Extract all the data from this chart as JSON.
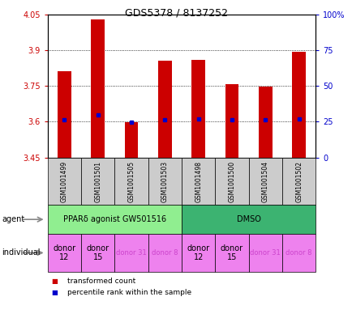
{
  "title": "GDS5378 / 8137252",
  "samples": [
    "GSM1001499",
    "GSM1001501",
    "GSM1001505",
    "GSM1001503",
    "GSM1001498",
    "GSM1001500",
    "GSM1001504",
    "GSM1001502"
  ],
  "red_values": [
    3.81,
    4.03,
    3.597,
    3.855,
    3.858,
    3.758,
    3.748,
    3.893
  ],
  "blue_values": [
    3.607,
    3.627,
    3.597,
    3.607,
    3.61,
    3.607,
    3.607,
    3.61
  ],
  "ylim_left": [
    3.45,
    4.05
  ],
  "ylim_right": [
    0,
    100
  ],
  "yticks_left": [
    3.45,
    3.6,
    3.75,
    3.9,
    4.05
  ],
  "ytick_labels_left": [
    "3.45",
    "3.6",
    "3.75",
    "3.9",
    "4.05"
  ],
  "yticks_right": [
    0,
    25,
    50,
    75,
    100
  ],
  "ytick_labels_right": [
    "0",
    "25",
    "50",
    "75",
    "100%"
  ],
  "hlines": [
    3.6,
    3.75,
    3.9
  ],
  "agent_groups": [
    {
      "label": "PPARδ agonist GW501516",
      "start": 0,
      "end": 4,
      "color": "#90EE90"
    },
    {
      "label": "DMSO",
      "start": 4,
      "end": 8,
      "color": "#3CB371"
    }
  ],
  "individual_groups": [
    {
      "label": "donor\n12",
      "start": 0,
      "end": 1,
      "color": "#EE82EE",
      "fontsize": 7,
      "text_color": "#000000"
    },
    {
      "label": "donor\n15",
      "start": 1,
      "end": 2,
      "color": "#EE82EE",
      "fontsize": 7,
      "text_color": "#000000"
    },
    {
      "label": "donor 31",
      "start": 2,
      "end": 3,
      "color": "#EE82EE",
      "fontsize": 6,
      "text_color": "#CC44CC"
    },
    {
      "label": "donor 8",
      "start": 3,
      "end": 4,
      "color": "#EE82EE",
      "fontsize": 6,
      "text_color": "#CC44CC"
    },
    {
      "label": "donor\n12",
      "start": 4,
      "end": 5,
      "color": "#EE82EE",
      "fontsize": 7,
      "text_color": "#000000"
    },
    {
      "label": "donor\n15",
      "start": 5,
      "end": 6,
      "color": "#EE82EE",
      "fontsize": 7,
      "text_color": "#000000"
    },
    {
      "label": "donor 31",
      "start": 6,
      "end": 7,
      "color": "#EE82EE",
      "fontsize": 6,
      "text_color": "#CC44CC"
    },
    {
      "label": "donor 8",
      "start": 7,
      "end": 8,
      "color": "#EE82EE",
      "fontsize": 6,
      "text_color": "#CC44CC"
    }
  ],
  "bar_color": "#cc0000",
  "dot_color": "#0000cc",
  "baseline": 3.45,
  "bar_width": 0.4,
  "legend_items": [
    {
      "color": "#cc0000",
      "label": "transformed count"
    },
    {
      "color": "#0000cc",
      "label": "percentile rank within the sample"
    }
  ],
  "axis_color_left": "#cc0000",
  "axis_color_right": "#0000cc",
  "sample_box_color": "#cccccc"
}
